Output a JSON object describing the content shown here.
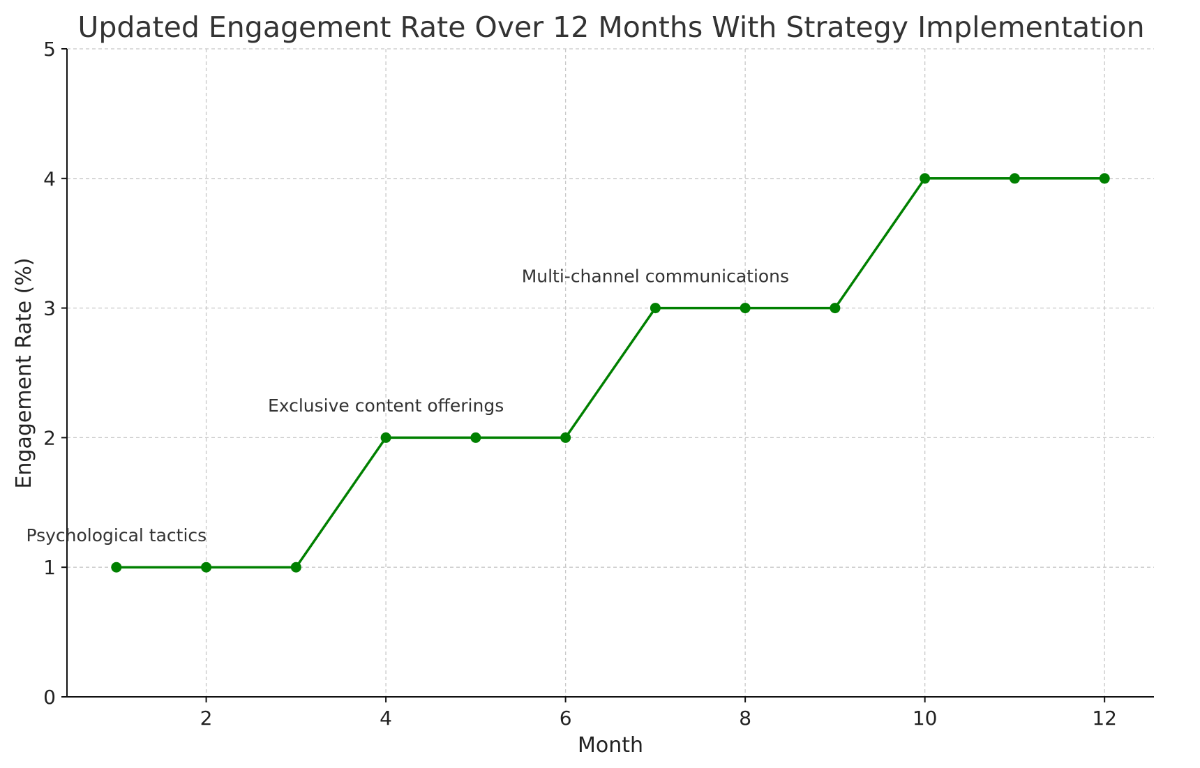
{
  "chart_data": {
    "type": "line",
    "title": "Updated Engagement Rate Over 12 Months With Strategy Implementation",
    "xlabel": "Month",
    "ylabel": "Engagement Rate (%)",
    "xlim": [
      0.45,
      12.55
    ],
    "ylim": [
      0,
      5
    ],
    "xticks": [
      2,
      4,
      6,
      8,
      10,
      12
    ],
    "yticks": [
      0,
      1,
      2,
      3,
      4,
      5
    ],
    "grid": true,
    "series": [
      {
        "color": "#008000",
        "x": [
          1,
          2,
          3,
          4,
          5,
          6,
          7,
          8,
          9,
          10,
          11,
          12
        ],
        "y": [
          1,
          1,
          1,
          2,
          2,
          2,
          3,
          3,
          3,
          4,
          4,
          4
        ]
      }
    ],
    "annotations": [
      {
        "text": "Psychological tactics",
        "x": 1,
        "y": 1.2
      },
      {
        "text": "Exclusive content offerings",
        "x": 4,
        "y": 2.2
      },
      {
        "text": "Multi-channel communications",
        "x": 7,
        "y": 3.2
      }
    ]
  }
}
